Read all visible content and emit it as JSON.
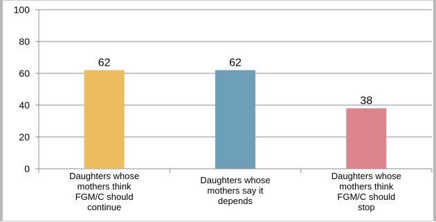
{
  "chart_data": {
    "type": "bar",
    "categories": [
      [
        "Daughters whose",
        "mothers think",
        "FGM/C should",
        "continue"
      ],
      [
        "Daughters whose",
        "mothers say it",
        "depends"
      ],
      [
        "Daughters whose",
        "mothers think",
        "FGM/C should",
        "stop"
      ]
    ],
    "values": [
      62,
      62,
      38
    ],
    "data_labels": [
      "62",
      "62",
      "38"
    ],
    "bar_colors": [
      "#EDBC5E",
      "#6E9FB8",
      "#DB868C"
    ],
    "y_ticks": [
      "0",
      "20",
      "40",
      "60",
      "80",
      "100"
    ],
    "ylim": [
      0,
      100
    ],
    "grid": true,
    "title": "",
    "xlabel": "",
    "ylabel": ""
  }
}
